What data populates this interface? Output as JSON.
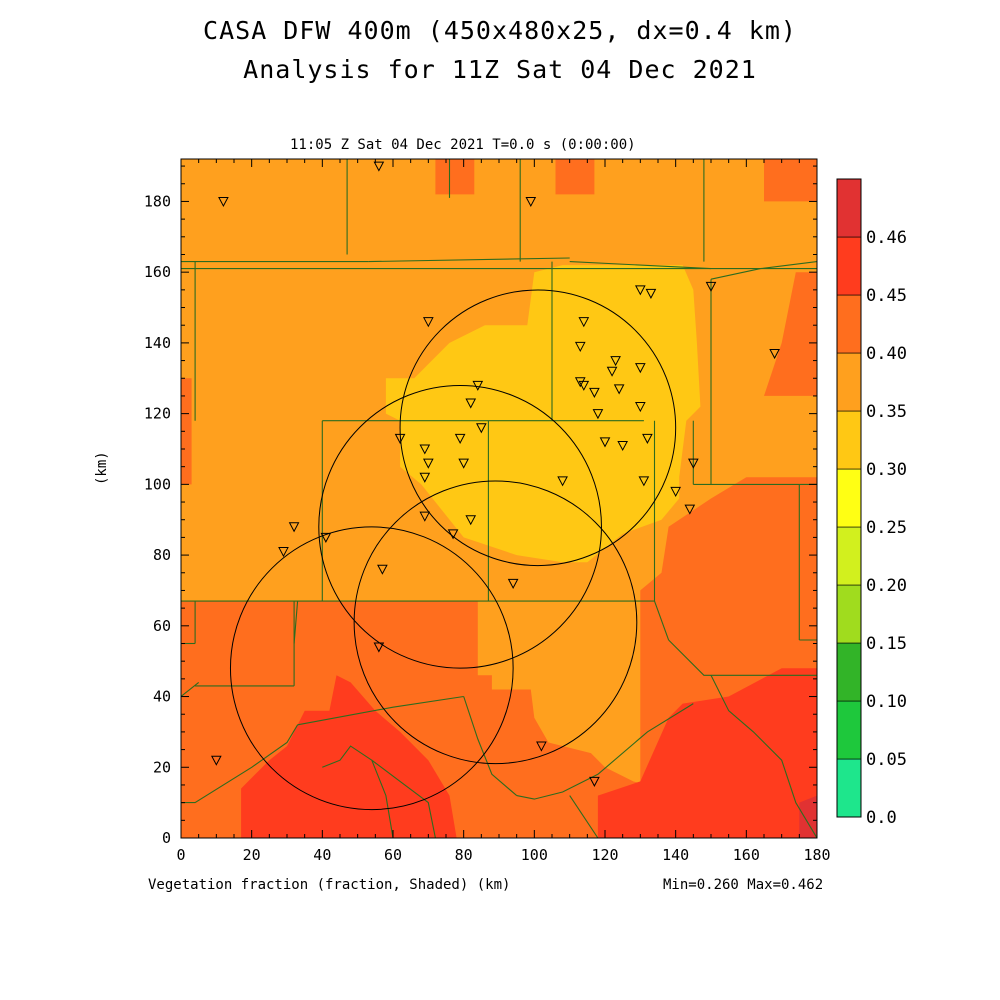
{
  "title_line1": "CASA DFW 400m (450x480x25, dx=0.4 km)",
  "title_line2": "Analysis for 11Z Sat 04 Dec 2021",
  "plot_time_label": "11:05 Z Sat 04 Dec 2021   T=0.0 s (0:00:00)",
  "footer_left": "Vegetation fraction (fraction, Shaded)  (km)",
  "footer_right": "Min=0.260 Max=0.462",
  "chart_data": {
    "type": "heatmap",
    "xlabel": "(km)",
    "ylabel": "(km)",
    "xlim": [
      0,
      180
    ],
    "ylim": [
      0,
      192
    ],
    "x_ticks": [
      0,
      20,
      40,
      60,
      80,
      100,
      120,
      140,
      160,
      180
    ],
    "y_ticks": [
      0,
      20,
      40,
      60,
      80,
      100,
      120,
      140,
      160,
      180
    ],
    "variable": "Vegetation fraction",
    "units": "fraction",
    "min": 0.26,
    "max": 0.462,
    "colorbar": {
      "levels": [
        "0.0",
        "0.05",
        "0.10",
        "0.15",
        "0.20",
        "0.25",
        "0.30",
        "0.35",
        "0.40",
        "0.45",
        "0.46"
      ],
      "colors": [
        "#1ee68c",
        "#1ec83c",
        "#32b428",
        "#a0dc1e",
        "#d2f01e",
        "#ffff14",
        "#ffc814",
        "#ffa01e",
        "#ff6e1e",
        "#ff3c1e",
        "#e13232"
      ]
    },
    "shaded_regions": [
      {
        "band": "0.30-0.35",
        "color": "#ffa01e",
        "polygon": [
          [
            0,
            192
          ],
          [
            180,
            192
          ],
          [
            180,
            0
          ],
          [
            0,
            0
          ]
        ]
      },
      {
        "band": "0.35-0.40",
        "color": "#ff6e1e",
        "polygon": [
          [
            0,
            67
          ],
          [
            84,
            67
          ],
          [
            84,
            46
          ],
          [
            88,
            46
          ],
          [
            88,
            42
          ],
          [
            99,
            42
          ],
          [
            100,
            34
          ],
          [
            104,
            27
          ],
          [
            116,
            24
          ],
          [
            120,
            20
          ],
          [
            128,
            16
          ],
          [
            136,
            14
          ],
          [
            136,
            0
          ],
          [
            0,
            0
          ]
        ]
      },
      {
        "band": "0.35-0.40",
        "color": "#ff6e1e",
        "polygon": [
          [
            130,
            70
          ],
          [
            136,
            75
          ],
          [
            138,
            88
          ],
          [
            150,
            96
          ],
          [
            160,
            102
          ],
          [
            180,
            102
          ],
          [
            180,
            0
          ],
          [
            130,
            0
          ]
        ]
      },
      {
        "band": "0.35-0.40",
        "color": "#ff6e1e",
        "polygon": [
          [
            165,
            125
          ],
          [
            170,
            140
          ],
          [
            174,
            160
          ],
          [
            180,
            160
          ],
          [
            180,
            125
          ]
        ]
      },
      {
        "band": "0.35-0.40",
        "color": "#ff6e1e",
        "polygon": [
          [
            0,
            130
          ],
          [
            3,
            130
          ],
          [
            3,
            100
          ],
          [
            0,
            100
          ]
        ]
      },
      {
        "band": "0.35-0.40",
        "color": "#ff6e1e",
        "polygon": [
          [
            72,
            192
          ],
          [
            83,
            192
          ],
          [
            83,
            182
          ],
          [
            72,
            182
          ]
        ]
      },
      {
        "band": "0.35-0.40",
        "color": "#ff6e1e",
        "polygon": [
          [
            106,
            192
          ],
          [
            117,
            192
          ],
          [
            117,
            182
          ],
          [
            106,
            182
          ]
        ]
      },
      {
        "band": "0.35-0.40",
        "color": "#ff6e1e",
        "polygon": [
          [
            165,
            192
          ],
          [
            180,
            192
          ],
          [
            180,
            180
          ],
          [
            165,
            180
          ]
        ]
      },
      {
        "band": "0.40-0.45",
        "color": "#ff3c1e",
        "polygon": [
          [
            17,
            0
          ],
          [
            17,
            14
          ],
          [
            25,
            22
          ],
          [
            30,
            26
          ],
          [
            35,
            36
          ],
          [
            42,
            36
          ],
          [
            44,
            46
          ],
          [
            48,
            44
          ],
          [
            55,
            36
          ],
          [
            62,
            30
          ],
          [
            70,
            22
          ],
          [
            76,
            12
          ],
          [
            78,
            0
          ]
        ]
      },
      {
        "band": "0.40-0.45",
        "color": "#ff3c1e",
        "polygon": [
          [
            118,
            0
          ],
          [
            118,
            12
          ],
          [
            130,
            16
          ],
          [
            138,
            34
          ],
          [
            142,
            38
          ],
          [
            155,
            40
          ],
          [
            170,
            48
          ],
          [
            180,
            48
          ],
          [
            180,
            0
          ]
        ]
      },
      {
        "band": "0.45-0.46",
        "color": "#e13232",
        "polygon": [
          [
            175,
            0
          ],
          [
            180,
            0
          ],
          [
            180,
            12
          ],
          [
            175,
            10
          ]
        ]
      },
      {
        "band": "0.25-0.30",
        "color": "#ffc814",
        "polygon": [
          [
            58,
            130
          ],
          [
            58,
            120
          ],
          [
            62,
            118
          ],
          [
            62,
            105
          ],
          [
            68,
            100
          ],
          [
            80,
            85
          ],
          [
            95,
            80
          ],
          [
            108,
            78
          ],
          [
            115,
            78
          ],
          [
            125,
            86
          ],
          [
            136,
            90
          ],
          [
            141,
            96
          ],
          [
            141,
            102
          ],
          [
            143,
            118
          ],
          [
            147,
            122
          ],
          [
            146,
            140
          ],
          [
            145,
            155
          ],
          [
            142,
            162
          ],
          [
            132,
            162
          ],
          [
            108,
            162
          ],
          [
            100,
            160
          ],
          [
            98,
            145
          ],
          [
            86,
            145
          ],
          [
            76,
            140
          ],
          [
            66,
            130
          ]
        ]
      }
    ],
    "boundaries": [
      [
        [
          0,
          67
        ],
        [
          134,
          67
        ]
      ],
      [
        [
          40,
          118
        ],
        [
          131,
          118
        ]
      ],
      [
        [
          0,
          161
        ],
        [
          180,
          161
        ]
      ],
      [
        [
          0,
          163
        ],
        [
          53,
          163
        ]
      ],
      [
        [
          53,
          163
        ],
        [
          110,
          164
        ]
      ],
      [
        [
          110,
          163
        ],
        [
          150,
          161
        ]
      ],
      [
        [
          150,
          158
        ],
        [
          164,
          161
        ],
        [
          180,
          163
        ]
      ],
      [
        [
          47,
          192
        ],
        [
          47,
          165
        ]
      ],
      [
        [
          76,
          192
        ],
        [
          76,
          181
        ]
      ],
      [
        [
          96,
          192
        ],
        [
          96,
          163
        ]
      ],
      [
        [
          148,
          192
        ],
        [
          148,
          163
        ]
      ],
      [
        [
          105,
          163
        ],
        [
          105,
          118
        ]
      ],
      [
        [
          40,
          118
        ],
        [
          40,
          67
        ]
      ],
      [
        [
          87,
          118
        ],
        [
          87,
          67
        ]
      ],
      [
        [
          134,
          118
        ],
        [
          134,
          67
        ]
      ],
      [
        [
          145,
          118
        ],
        [
          145,
          100
        ]
      ],
      [
        [
          145,
          100
        ],
        [
          180,
          100
        ]
      ],
      [
        [
          4,
          118
        ],
        [
          4,
          163
        ]
      ],
      [
        [
          150,
          158
        ],
        [
          150,
          100
        ]
      ],
      [
        [
          0,
          55
        ],
        [
          4,
          55
        ]
      ],
      [
        [
          32,
          55
        ],
        [
          33,
          67
        ]
      ],
      [
        [
          4,
          55
        ],
        [
          4,
          67
        ]
      ],
      [
        [
          0,
          40
        ],
        [
          5,
          44
        ]
      ],
      [
        [
          32,
          43
        ],
        [
          32,
          67
        ]
      ],
      [
        [
          4,
          43
        ],
        [
          32,
          43
        ]
      ],
      [
        [
          0,
          10
        ],
        [
          4,
          10
        ],
        [
          20,
          20
        ],
        [
          30,
          27
        ],
        [
          33,
          32
        ]
      ],
      [
        [
          33,
          32
        ],
        [
          60,
          37
        ],
        [
          80,
          40
        ]
      ],
      [
        [
          80,
          40
        ],
        [
          84,
          28
        ],
        [
          88,
          18
        ],
        [
          95,
          12
        ]
      ],
      [
        [
          95,
          12
        ],
        [
          100,
          11
        ],
        [
          108,
          13
        ],
        [
          118,
          18
        ]
      ],
      [
        [
          118,
          18
        ],
        [
          132,
          30
        ],
        [
          145,
          38
        ]
      ],
      [
        [
          138,
          56
        ],
        [
          148,
          46
        ],
        [
          180,
          46
        ]
      ],
      [
        [
          138,
          56
        ],
        [
          134,
          67
        ]
      ],
      [
        [
          180,
          56
        ],
        [
          175,
          56
        ]
      ],
      [
        [
          175,
          56
        ],
        [
          175,
          100
        ]
      ],
      [
        [
          60,
          0
        ],
        [
          58,
          12
        ],
        [
          54,
          22
        ],
        [
          48,
          26
        ],
        [
          45,
          22
        ],
        [
          40,
          20
        ]
      ],
      [
        [
          54,
          22
        ],
        [
          62,
          16
        ],
        [
          70,
          10
        ],
        [
          72,
          0
        ]
      ],
      [
        [
          110,
          12
        ],
        [
          118,
          0
        ]
      ],
      [
        [
          150,
          46
        ],
        [
          155,
          36
        ],
        [
          162,
          30
        ],
        [
          170,
          22
        ],
        [
          174,
          10
        ],
        [
          180,
          0
        ]
      ]
    ],
    "range_circles": [
      {
        "center": [
          101,
          116
        ],
        "radius_km": 39
      },
      {
        "center": [
          79,
          88
        ],
        "radius_km": 40
      },
      {
        "center": [
          54,
          48
        ],
        "radius_km": 40
      },
      {
        "center": [
          89,
          61
        ],
        "radius_km": 40
      }
    ],
    "stations": [
      [
        12,
        180
      ],
      [
        56,
        190
      ],
      [
        99,
        180
      ],
      [
        150,
        156
      ],
      [
        130,
        155
      ],
      [
        133,
        154
      ],
      [
        70,
        146
      ],
      [
        114,
        146
      ],
      [
        113,
        139
      ],
      [
        123,
        135
      ],
      [
        122,
        132
      ],
      [
        130,
        133
      ],
      [
        113,
        129
      ],
      [
        114,
        128
      ],
      [
        117,
        126
      ],
      [
        124,
        127
      ],
      [
        130,
        122
      ],
      [
        118,
        120
      ],
      [
        84,
        128
      ],
      [
        82,
        123
      ],
      [
        62,
        113
      ],
      [
        69,
        110
      ],
      [
        79,
        113
      ],
      [
        85,
        116
      ],
      [
        70,
        106
      ],
      [
        69,
        102
      ],
      [
        80,
        106
      ],
      [
        120,
        112
      ],
      [
        125,
        111
      ],
      [
        132,
        113
      ],
      [
        108,
        101
      ],
      [
        131,
        101
      ],
      [
        145,
        106
      ],
      [
        140,
        98
      ],
      [
        144,
        93
      ],
      [
        69,
        91
      ],
      [
        82,
        90
      ],
      [
        77,
        86
      ],
      [
        32,
        88
      ],
      [
        29,
        81
      ],
      [
        41,
        85
      ],
      [
        57,
        76
      ],
      [
        94,
        72
      ],
      [
        56,
        54
      ],
      [
        168,
        137
      ],
      [
        10,
        22
      ],
      [
        102,
        26
      ],
      [
        117,
        16
      ]
    ]
  }
}
